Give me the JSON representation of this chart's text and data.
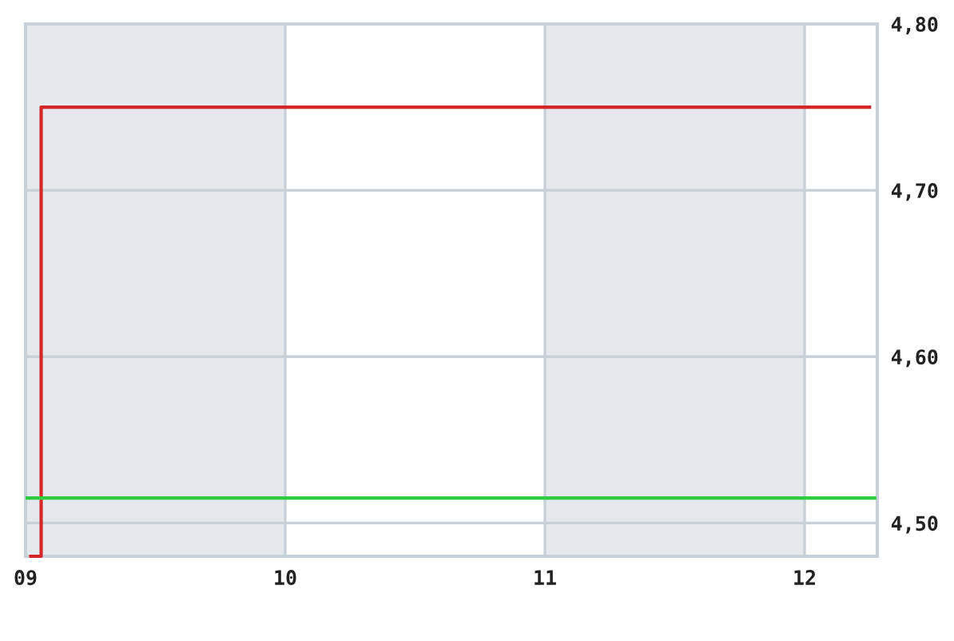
{
  "chart_data": {
    "type": "step",
    "series": [
      {
        "color": "#d62728",
        "x": [
          9.02,
          9.06,
          12.25
        ],
        "values": [
          4.48,
          4.75,
          4.75
        ]
      },
      {
        "type": "line",
        "color": "#2ecc40",
        "x": [
          9.0,
          12.27
        ],
        "values": [
          4.515,
          4.515
        ]
      }
    ],
    "xlim": [
      9.0,
      12.28
    ],
    "ylim": [
      4.48,
      4.8
    ],
    "xticks": [
      {
        "value": 9,
        "label": "09"
      },
      {
        "value": 10,
        "label": "10"
      },
      {
        "value": 11,
        "label": "11"
      },
      {
        "value": 12,
        "label": "12"
      }
    ],
    "yticks": [
      {
        "value": 4.5,
        "label": "4,50"
      },
      {
        "value": 4.6,
        "label": "4,60"
      },
      {
        "value": 4.7,
        "label": "4,70"
      },
      {
        "value": 4.8,
        "label": "4,80"
      }
    ],
    "bands": [
      {
        "axis": "x",
        "from": 9,
        "to": 10,
        "color": "#e5e9ed"
      },
      {
        "axis": "x",
        "from": 11,
        "to": 12,
        "color": "#e5e9ed"
      }
    ],
    "grid": true,
    "legend": false
  }
}
